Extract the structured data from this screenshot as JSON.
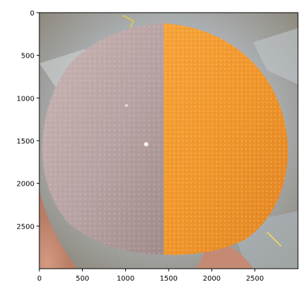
{
  "figure": {
    "type": "image-plot",
    "image_description_colors": {
      "background_top": "#9a9486",
      "foil": "#b8c0c6",
      "grey_half": "#b9a6a6",
      "orange_half": "#f29a2e",
      "hand": "#c98f78"
    }
  },
  "axes": {
    "x": {
      "ticks": [
        0,
        500,
        1000,
        1500,
        2000,
        2500
      ],
      "tick_labels": [
        "0",
        "500",
        "1000",
        "1500",
        "2000",
        "2500"
      ],
      "range": [
        0,
        3000
      ]
    },
    "y": {
      "ticks": [
        0,
        500,
        1000,
        1500,
        2000,
        2500
      ],
      "tick_labels": [
        "0",
        "500",
        "1000",
        "1500",
        "2000",
        "2500"
      ],
      "range": [
        0,
        3000
      ]
    }
  }
}
